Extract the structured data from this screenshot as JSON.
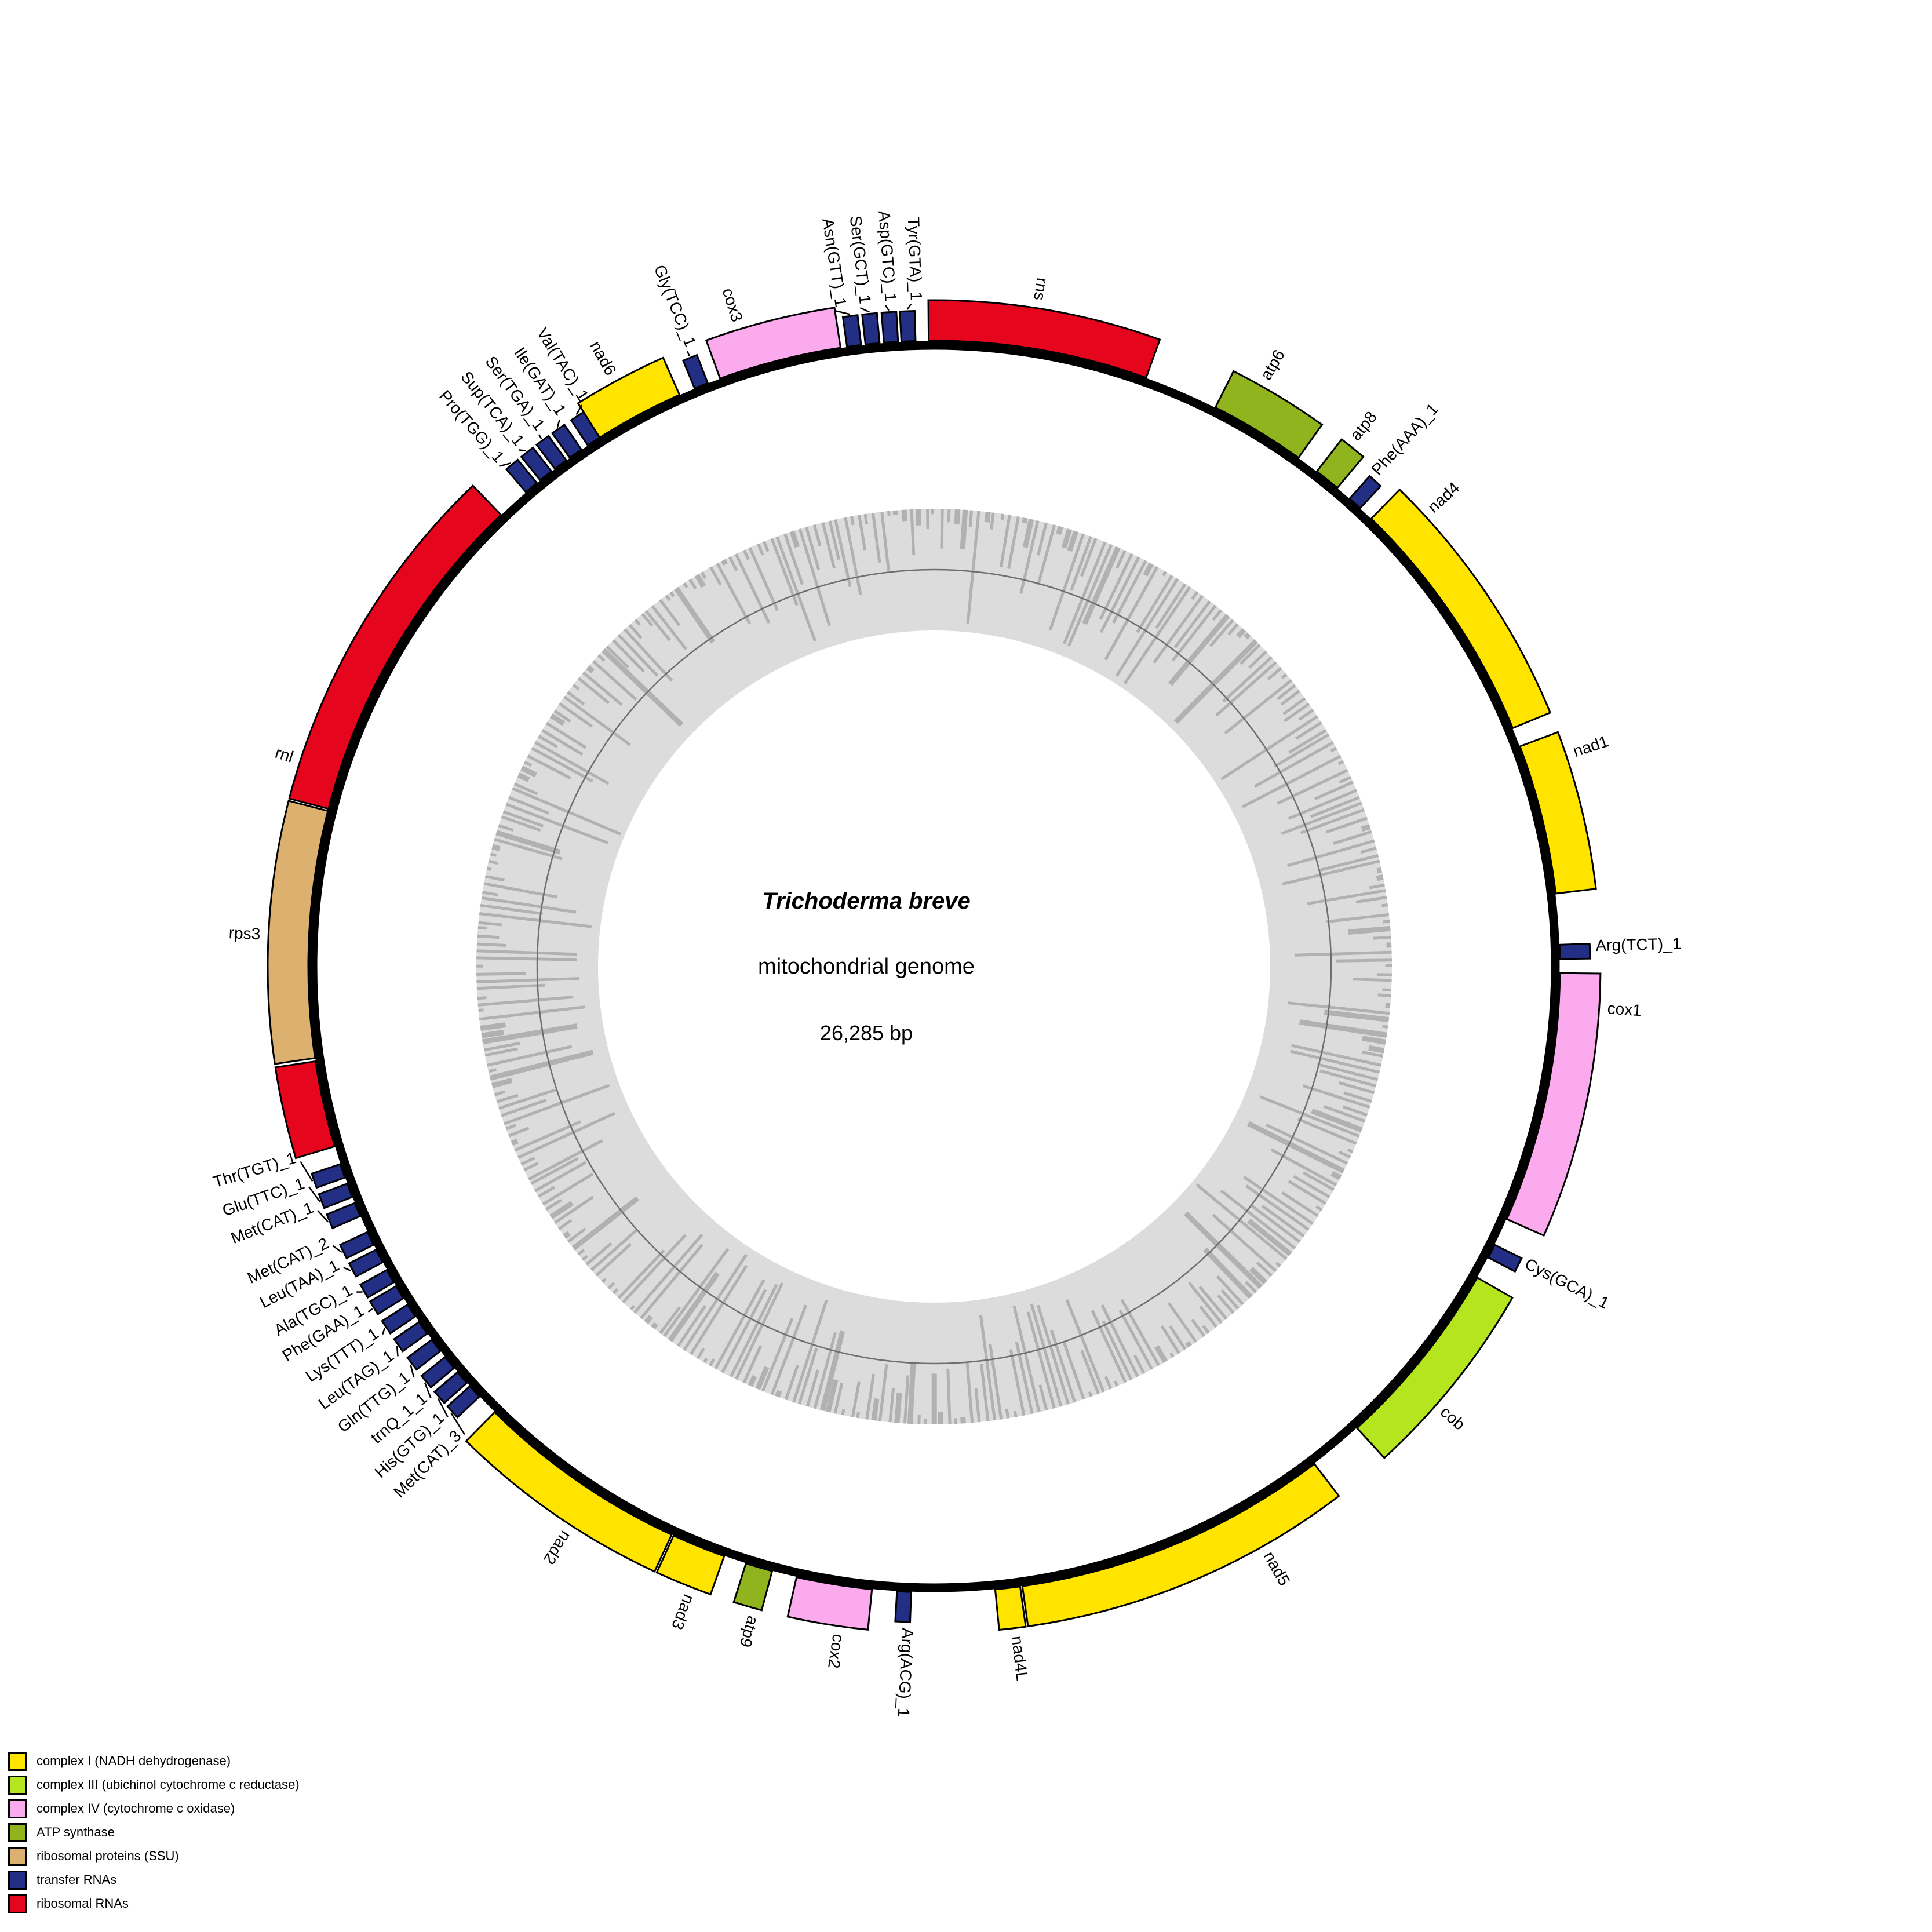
{
  "figure": {
    "species": "Trichoderma breve",
    "subtitle": "mitochondrial genome",
    "genome_size": "26,285 bp"
  },
  "colors": {
    "complex1": "#ffe400",
    "complex3": "#b4e51e",
    "complex4": "#fbaaed",
    "atp": "#8fb41d",
    "rprot": "#dcb170",
    "trna": "#232f85",
    "rrna": "#e5051c",
    "outline": "#000000",
    "gc_band": "#dcdcdc",
    "gc_bars": "#b1b1b1",
    "gc_midline": "#6e6e6e"
  },
  "legend": [
    {
      "label": "complex I (NADH dehydrogenase)",
      "category": "complex1"
    },
    {
      "label": "complex III (ubichinol cytochrome c reductase)",
      "category": "complex3"
    },
    {
      "label": "complex IV (cytochrome c oxidase)",
      "category": "complex4"
    },
    {
      "label": "ATP synthase",
      "category": "atp"
    },
    {
      "label": "ribosomal proteins (SSU)",
      "category": "rprot"
    },
    {
      "label": "transfer RNAs",
      "category": "trna"
    },
    {
      "label": "ribosomal RNAs",
      "category": "rrna"
    }
  ],
  "features": [
    {
      "name": "rns",
      "category": "rrna",
      "start": 359.5,
      "end": 379.8,
      "label_angle": 8.5
    },
    {
      "name": "atp6",
      "category": "atp",
      "start": 26.7,
      "end": 35.6,
      "label_angle": 29.8
    },
    {
      "name": "atp8",
      "category": "atp",
      "start": 37.7,
      "end": 40.1,
      "label_angle": 38.9
    },
    {
      "name": "Phe(AAA)_1",
      "category": "trna",
      "start": 41.6,
      "end": 42.9,
      "label_angle": 42.2
    },
    {
      "name": "nad4",
      "category": "complex1",
      "start": 44.3,
      "end": 67.6,
      "label_angle": 47.8
    },
    {
      "name": "nad1",
      "category": "complex1",
      "start": 69.4,
      "end": 83.3,
      "label_angle": 71.9
    },
    {
      "name": "Arg(TCT)_1",
      "category": "trna",
      "start": 88.0,
      "end": 89.3,
      "label_angle": 88.65
    },
    {
      "name": "cox1",
      "category": "complex4",
      "start": 90.6,
      "end": 113.8,
      "label_angle": 94.0
    },
    {
      "name": "Cys(GCA)_1",
      "category": "trna",
      "start": 116.4,
      "end": 117.7,
      "label_angle": 117.05
    },
    {
      "name": "cob",
      "category": "complex3",
      "start": 119.8,
      "end": 137.5,
      "label_angle": 131.5
    },
    {
      "name": "nad5",
      "category": "complex1",
      "start": 142.6,
      "end": 171.9,
      "label_angle": 150.8
    },
    {
      "name": "nad4L",
      "category": "complex1",
      "start": 172.1,
      "end": 174.4,
      "label_angle": 173.4
    },
    {
      "name": "Arg(ACG)_1",
      "category": "trna",
      "start": 182.1,
      "end": 183.4,
      "label_angle": 182.75
    },
    {
      "name": "cox2",
      "category": "complex4",
      "start": 185.7,
      "end": 192.7,
      "label_angle": 188.6
    },
    {
      "name": "atp9",
      "category": "atp",
      "start": 195.0,
      "end": 197.5,
      "label_angle": 196.0
    },
    {
      "name": "nad3",
      "category": "complex1",
      "start": 199.6,
      "end": 204.6,
      "label_angle": 201.7
    },
    {
      "name": "nad2",
      "category": "complex1",
      "start": 204.8,
      "end": 224.6,
      "label_angle": 213.4
    },
    {
      "name": "Met(CAT)_3",
      "category": "trna",
      "start": 226.6,
      "end": 227.9,
      "label_angle": 225.1,
      "leader": true
    },
    {
      "name": "His(GTG)_1",
      "category": "trna",
      "start": 228.3,
      "end": 229.6,
      "label_angle": 227.2,
      "leader": true
    },
    {
      "name": "trnQ_1_1",
      "category": "trna",
      "start": 230.1,
      "end": 231.4,
      "label_angle": 229.4,
      "leader": true
    },
    {
      "name": "Gln(TTG)_1",
      "category": "trna",
      "start": 232.1,
      "end": 233.4,
      "label_angle": 231.7,
      "leader": true
    },
    {
      "name": "Leu(TAG)_1",
      "category": "trna",
      "start": 234.1,
      "end": 235.4,
      "label_angle": 234.0,
      "leader": true
    },
    {
      "name": "Lys(TTT)_1",
      "category": "trna",
      "start": 236.0,
      "end": 237.3,
      "label_angle": 236.3,
      "leader": true
    },
    {
      "name": "Phe(GAA)_1",
      "category": "trna",
      "start": 238.0,
      "end": 239.3,
      "label_angle": 238.6,
      "leader": true
    },
    {
      "name": "Ala(TGC)_1",
      "category": "trna",
      "start": 239.7,
      "end": 241.0,
      "label_angle": 240.6,
      "leader": true
    },
    {
      "name": "Leu(TAA)_1",
      "category": "trna",
      "start": 241.8,
      "end": 243.1,
      "label_angle": 243.0,
      "leader": true
    },
    {
      "name": "Met(CAT)_2",
      "category": "trna",
      "start": 243.6,
      "end": 244.9,
      "label_angle": 245.1,
      "leader": true
    },
    {
      "name": "Met(CAT)_1",
      "category": "trna",
      "start": 246.5,
      "end": 247.8,
      "label_angle": 248.4,
      "leader": true
    },
    {
      "name": "Glu(TTC)_1",
      "category": "trna",
      "start": 248.4,
      "end": 249.7,
      "label_angle": 250.6,
      "leader": true
    },
    {
      "name": "Thr(TGT)_1",
      "category": "trna",
      "start": 250.3,
      "end": 251.6,
      "label_angle": 252.9,
      "leader": true
    },
    {
      "name": "rnl",
      "category": "rrna",
      "start": 253.3,
      "end": 261.3,
      "show_label": false
    },
    {
      "name": "rps3",
      "category": "rprot",
      "start": 261.6,
      "end": 284.4,
      "label_angle": 272.3
    },
    {
      "name": "rnl",
      "category": "rrna",
      "start": 284.6,
      "end": 316.2,
      "label_angle": 287.6
    },
    {
      "name": "Pro(TGG)_1",
      "category": "trna",
      "start": 319.3,
      "end": 320.6,
      "label_angle": 319.0,
      "leader": true
    },
    {
      "name": "Sup(TCA)_1",
      "category": "trna",
      "start": 321.0,
      "end": 322.3,
      "label_angle": 321.2,
      "leader": true
    },
    {
      "name": "Ser(TGA)_1",
      "category": "trna",
      "start": 322.7,
      "end": 324.0,
      "label_angle": 323.4,
      "leader": true
    },
    {
      "name": "Ile(GAT)_1",
      "category": "trna",
      "start": 324.4,
      "end": 325.7,
      "label_angle": 325.6,
      "leader": true
    },
    {
      "name": "Val(TAC)_1",
      "category": "trna",
      "start": 326.4,
      "end": 327.7,
      "label_angle": 327.9,
      "leader": true
    },
    {
      "name": "nad6",
      "category": "complex1",
      "start": 327.7,
      "end": 336.0,
      "label_angle": 331.0
    },
    {
      "name": "Gly(TCC)_1",
      "category": "trna",
      "start": 337.5,
      "end": 338.8,
      "label_angle": 338.15,
      "leader": true
    },
    {
      "name": "cox3",
      "category": "complex4",
      "start": 340.0,
      "end": 351.4,
      "label_angle": 342.6
    },
    {
      "name": "Asn(GTT)_1",
      "category": "trna",
      "start": 352.0,
      "end": 353.3,
      "label_angle": 351.5,
      "leader": true
    },
    {
      "name": "Ser(GCT)_1",
      "category": "trna",
      "start": 353.7,
      "end": 355.0,
      "label_angle": 353.6,
      "leader": true
    },
    {
      "name": "Asp(GTC)_1",
      "category": "trna",
      "start": 355.4,
      "end": 356.7,
      "label_angle": 355.8,
      "leader": true
    },
    {
      "name": "Tyr(GTA)_1",
      "category": "trna",
      "start": 357.0,
      "end": 358.3,
      "label_angle": 358.0,
      "leader": true
    }
  ],
  "gc_ring": {
    "outer_radius": 790,
    "inner_radius": 580,
    "midline_radius": 685,
    "bar_count": 380,
    "seed": 7
  }
}
